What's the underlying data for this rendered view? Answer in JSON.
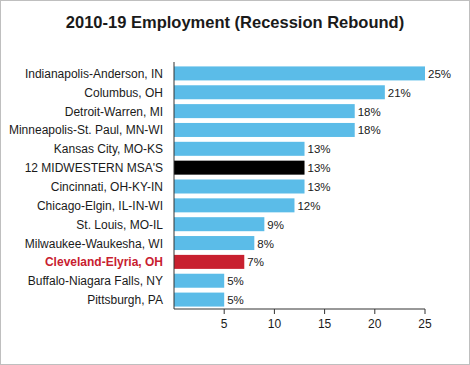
{
  "chart_data": {
    "type": "bar",
    "orientation": "horizontal",
    "title": "2010-19 Employment (Recession Rebound)",
    "categories": [
      "Indianapolis-Anderson, IN",
      "Columbus, OH",
      "Detroit-Warren, MI",
      "Minneapolis-St. Paul, MN-WI",
      "Kansas City, MO-KS",
      "12 MIDWESTERN MSA'S",
      "Cincinnati, OH-KY-IN",
      "Chicago-Elgin, IL-IN-WI",
      "St. Louis, MO-IL",
      "Milwaukee-Waukesha, WI",
      "Cleveland-Elyria, OH",
      "Buffalo-Niagara Falls, NY",
      "Pittsburgh, PA"
    ],
    "values": [
      25,
      21,
      18,
      18,
      13,
      13,
      13,
      12,
      9,
      8,
      7,
      5,
      5
    ],
    "value_labels": [
      "25%",
      "21%",
      "18%",
      "18%",
      "13%",
      "13%",
      "13%",
      "12%",
      "9%",
      "8%",
      "7%",
      "5%",
      "5%"
    ],
    "colors": [
      "#5bbce8",
      "#5bbce8",
      "#5bbce8",
      "#5bbce8",
      "#5bbce8",
      "#000000",
      "#5bbce8",
      "#5bbce8",
      "#5bbce8",
      "#5bbce8",
      "#c8202f",
      "#5bbce8",
      "#5bbce8"
    ],
    "xlim": [
      0,
      25
    ],
    "xticks": [
      5,
      10,
      15,
      20,
      25
    ],
    "data_labels": true,
    "grid": false
  }
}
